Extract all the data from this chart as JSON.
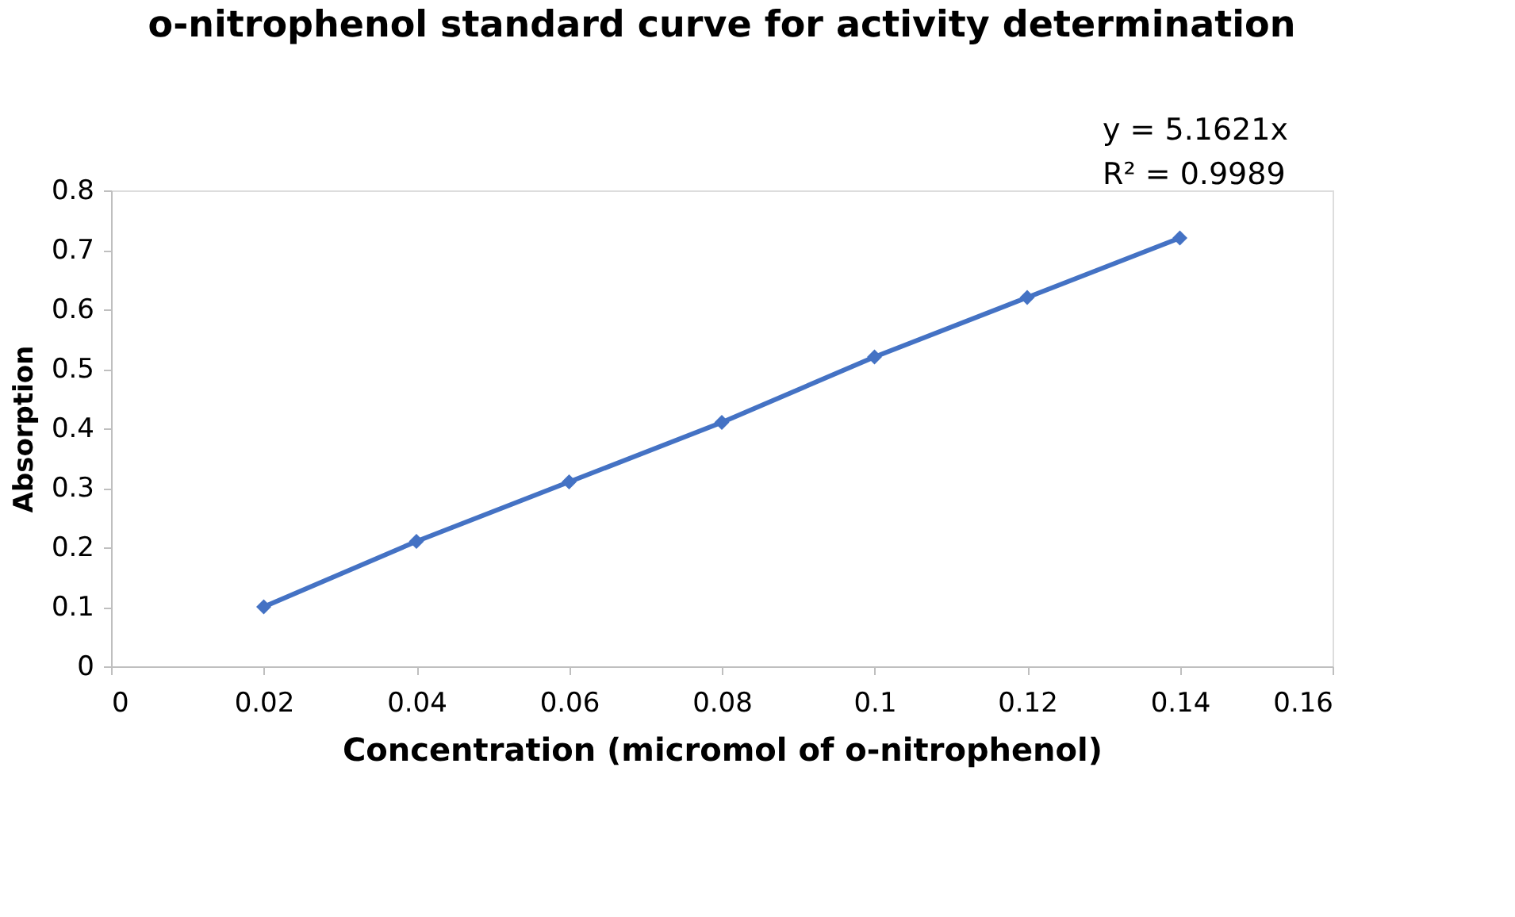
{
  "chart_data": {
    "type": "line",
    "title": "o-nitrophenol standard curve for activity determination",
    "xlabel": "Concentration (micromol of o-nitrophenol)",
    "ylabel": "Absorption",
    "x": [
      0.02,
      0.04,
      0.06,
      0.08,
      0.1,
      0.12,
      0.14
    ],
    "series": [
      {
        "color": "#4472c4",
        "values": [
          0.1,
          0.21,
          0.31,
          0.41,
          0.52,
          0.62,
          0.72
        ]
      }
    ],
    "xlim": [
      0,
      0.16
    ],
    "xticks": [
      0,
      0.02,
      0.04,
      0.06,
      0.08,
      0.1,
      0.12,
      0.14,
      0.16
    ],
    "ylim": [
      0,
      0.8
    ],
    "yticks": [
      0,
      0.1,
      0.2,
      0.3,
      0.4,
      0.5,
      0.6,
      0.7,
      0.8
    ],
    "annotations": [
      "y = 5.1621x",
      "R² = 0.9989"
    ],
    "grid": false,
    "marker": "diamond",
    "line_style": "solid"
  }
}
